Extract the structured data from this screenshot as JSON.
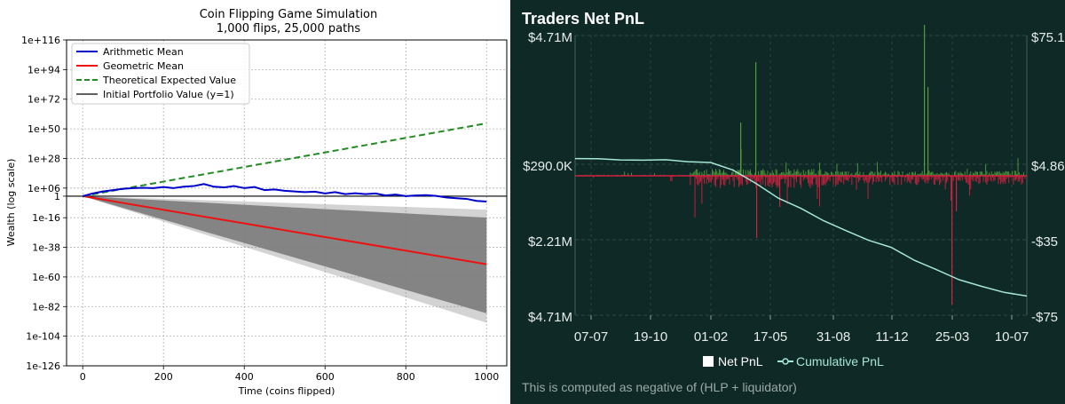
{
  "left_chart": {
    "chart_data": {
      "type": "line",
      "title": "Coin Flipping Game Simulation",
      "subtitle": "1,000 flips, 25,000 paths",
      "xlabel": "Time (coins flipped)",
      "ylabel": "Wealth (log scale)",
      "y_scale": "log",
      "xlim": [
        -40,
        1050
      ],
      "ylim_log10": [
        -126,
        116
      ],
      "x_ticks": [
        0,
        200,
        400,
        600,
        800,
        1000
      ],
      "y_ticks": [
        {
          "label": "1e+116",
          "log10": 116
        },
        {
          "label": "1e+94",
          "log10": 94
        },
        {
          "label": "1e+72",
          "log10": 72
        },
        {
          "label": "1e+50",
          "log10": 50
        },
        {
          "label": "1e+28",
          "log10": 28
        },
        {
          "label": "1e+06",
          "log10": 6
        },
        {
          "label": "1",
          "log10": 0
        },
        {
          "label": "1e-16",
          "log10": -16
        },
        {
          "label": "1e-38",
          "log10": -38
        },
        {
          "label": "1e-60",
          "log10": -60
        },
        {
          "label": "1e-82",
          "log10": -82
        },
        {
          "label": "1e-104",
          "log10": -104
        },
        {
          "label": "1e-126",
          "log10": -126
        }
      ],
      "grid": true,
      "legend_position": "top-left",
      "series": [
        {
          "name": "Arithmetic Mean",
          "color": "#0000cc",
          "style": "solid",
          "x": [
            0,
            25,
            50,
            75,
            100,
            125,
            150,
            175,
            200,
            225,
            250,
            275,
            300,
            325,
            350,
            375,
            400,
            425,
            450,
            475,
            500,
            525,
            550,
            575,
            600,
            625,
            650,
            675,
            700,
            725,
            750,
            775,
            800,
            825,
            850,
            875,
            900,
            925,
            950,
            975,
            1000
          ],
          "log10_y": [
            0,
            2,
            3.5,
            4.5,
            5.5,
            6,
            6.2,
            6,
            6.8,
            6,
            7,
            7.5,
            9,
            7,
            6.5,
            7.5,
            6,
            6.8,
            4.5,
            5,
            4,
            3.5,
            3,
            3.3,
            2,
            3,
            1.5,
            2.2,
            1.5,
            2,
            0.5,
            1.2,
            0,
            0.5,
            0.8,
            0.2,
            -1,
            -1.5,
            -2,
            -3.5,
            -4
          ]
        },
        {
          "name": "Geometric Mean",
          "color": "#ee1111",
          "style": "solid",
          "x": [
            0,
            1000
          ],
          "log10_y": [
            0,
            -50.6
          ]
        },
        {
          "name": "Theoretical Expected Value",
          "color": "#228b22",
          "style": "dashed",
          "x": [
            0,
            1000
          ],
          "log10_y": [
            0,
            54.1
          ]
        },
        {
          "name": "Initial Portfolio Value (y=1)",
          "color": "#000000",
          "style": "solid",
          "x": [
            -40,
            1050
          ],
          "log10_y": [
            0,
            0
          ]
        }
      ],
      "paths_band": {
        "color": "#808080",
        "x": [
          0,
          1000
        ],
        "upper_log10": [
          0,
          -16
        ],
        "lower_log10": [
          0,
          -87
        ]
      }
    }
  },
  "right_chart": {
    "chart_data": {
      "type": "bar",
      "title": "Traders Net PnL",
      "x_tick_labels": [
        "07-07",
        "19-10",
        "01-02",
        "17-05",
        "31-08",
        "11-12",
        "25-03",
        "10-07"
      ],
      "left_axis_labels": [
        "$4.71M",
        "$290.0K",
        "$2.21M",
        "$4.71M"
      ],
      "right_axis_labels": [
        "$75.1",
        "$4.86",
        "-$35",
        "-$75"
      ],
      "grid": true,
      "legend_position": "bottom-center",
      "series": [
        {
          "name": "Net PnL",
          "type": "bar",
          "positive_color": "#4e9c3a",
          "negative_color": "#d2203f"
        },
        {
          "name": "Cumulative PnL",
          "type": "line",
          "color": "#a6e6d8",
          "x_frac": [
            0,
            0.05,
            0.1,
            0.15,
            0.2,
            0.25,
            0.3,
            0.35,
            0.4,
            0.45,
            0.5,
            0.55,
            0.6,
            0.65,
            0.7,
            0.75,
            0.8,
            0.85,
            0.9,
            0.95,
            1.0
          ],
          "y_frac": [
            0.44,
            0.44,
            0.445,
            0.445,
            0.445,
            0.45,
            0.455,
            0.48,
            0.53,
            0.58,
            0.62,
            0.66,
            0.7,
            0.73,
            0.76,
            0.8,
            0.84,
            0.87,
            0.9,
            0.915,
            0.935
          ]
        }
      ],
      "footnote": "This is computed as negative of (HLP + liquidator)"
    }
  }
}
